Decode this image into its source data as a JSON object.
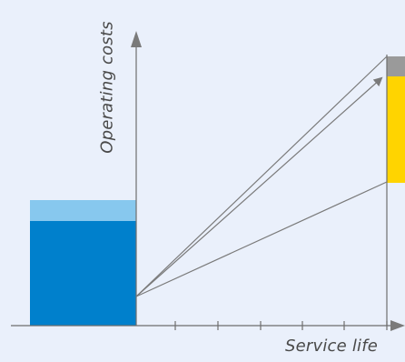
{
  "diagram": {
    "y_axis_label": "Operating costs",
    "x_axis_label": "Service life",
    "colors": {
      "background": "#eaf0fb",
      "axis": "#6e6e6e",
      "bar_dark_blue": "#0080cc",
      "bar_light_blue": "#87c8ee",
      "bar_yellow": "#ffd400",
      "bar_grey": "#9a9a9a"
    },
    "x_axis_tick_count": 6
  }
}
